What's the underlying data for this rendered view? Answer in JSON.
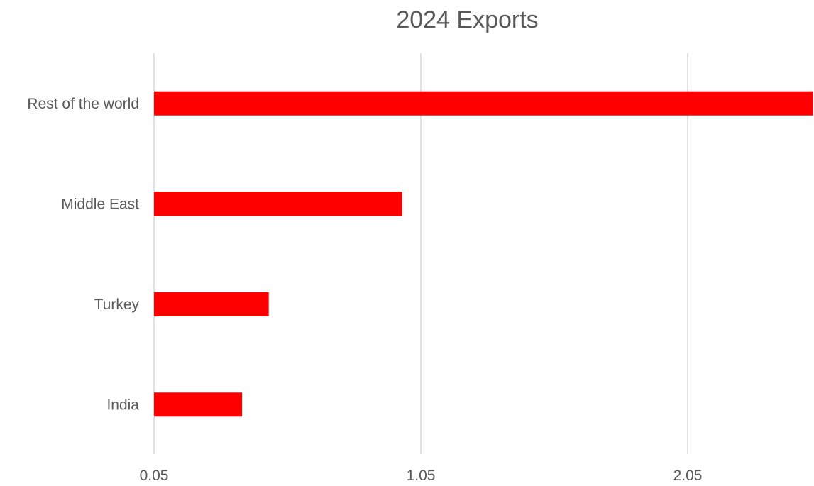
{
  "chart_data": {
    "type": "bar",
    "orientation": "horizontal",
    "title": "2024 Exports",
    "xlabel": "",
    "ylabel": "",
    "categories": [
      "Rest of the world",
      "Middle East",
      "Turkey",
      "India"
    ],
    "values": [
      2.52,
      0.98,
      0.48,
      0.38
    ],
    "xlim": [
      0.05,
      2.52
    ],
    "xticks": [
      0.05,
      1.05,
      2.05
    ],
    "xtick_labels": [
      "0.05",
      "1.05",
      "2.05"
    ],
    "grid": true,
    "legend": "none",
    "bar_color": "#ff0000",
    "gridline_color": "#d9d9d9",
    "text_color": "#595959"
  }
}
